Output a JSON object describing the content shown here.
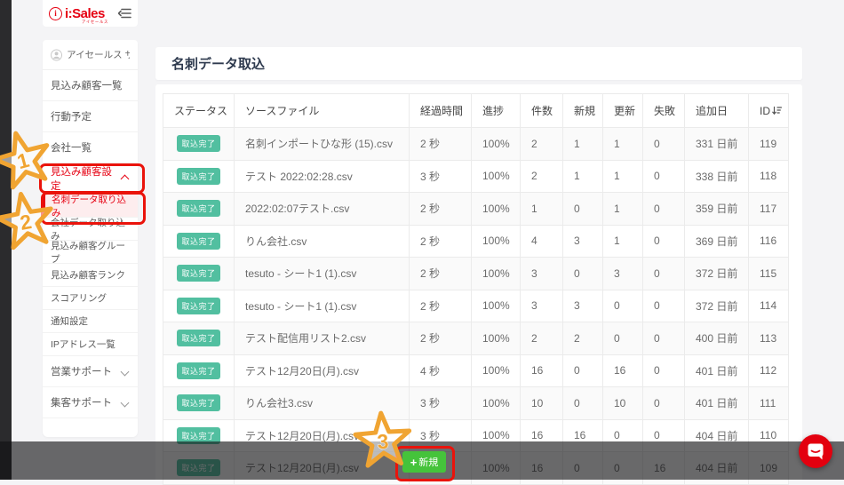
{
  "brand": {
    "logo_text": "i:Sales",
    "logo_mark": "i",
    "logo_subtext": "アイセールス"
  },
  "user": {
    "name": "アイセールス サ…"
  },
  "sidebar": {
    "items": [
      {
        "key": "leads-list",
        "label": "見込み顧客一覧",
        "type": "main"
      },
      {
        "key": "action-schedule",
        "label": "行動予定",
        "type": "main"
      },
      {
        "key": "company-list",
        "label": "会社一覧",
        "type": "main"
      },
      {
        "key": "lead-settings",
        "label": "見込み顧客設定",
        "type": "main",
        "accent": true,
        "chevron": "up"
      },
      {
        "key": "business-card-import",
        "label": "名刺データ取り込み",
        "type": "sub",
        "active": true
      },
      {
        "key": "company-data-import",
        "label": "会社データ取り込み",
        "type": "sub"
      },
      {
        "key": "lead-group",
        "label": "見込み顧客グループ",
        "type": "sub"
      },
      {
        "key": "lead-rank",
        "label": "見込み顧客ランク",
        "type": "sub"
      },
      {
        "key": "scoring",
        "label": "スコアリング",
        "type": "sub"
      },
      {
        "key": "notification-settings",
        "label": "通知設定",
        "type": "sub"
      },
      {
        "key": "ip-address-list",
        "label": "IPアドレス一覧",
        "type": "sub"
      },
      {
        "key": "sales-support",
        "label": "営業サポート",
        "type": "main",
        "chevron": "down"
      },
      {
        "key": "marketing-support",
        "label": "集客サポート",
        "type": "main",
        "chevron": "down"
      }
    ]
  },
  "page": {
    "title": "名刺データ取込"
  },
  "table": {
    "columns": [
      "ステータス",
      "ソースファイル",
      "経過時間",
      "進捗",
      "件数",
      "新規",
      "更新",
      "失敗",
      "追加日",
      "ID"
    ],
    "rows": [
      {
        "status": "取込完了",
        "file": "名刺インポートひな形 (15).csv",
        "time": "2 秒",
        "progress": "100%",
        "count": "2",
        "new": "1",
        "update": "1",
        "fail": "0",
        "added": "331 日前",
        "id": "119"
      },
      {
        "status": "取込完了",
        "file": "テスト 2022:02:28.csv",
        "time": "3 秒",
        "progress": "100%",
        "count": "2",
        "new": "1",
        "update": "1",
        "fail": "0",
        "added": "338 日前",
        "id": "118"
      },
      {
        "status": "取込完了",
        "file": "2022:02:07テスト.csv",
        "time": "2 秒",
        "progress": "100%",
        "count": "1",
        "new": "0",
        "update": "1",
        "fail": "0",
        "added": "359 日前",
        "id": "117"
      },
      {
        "status": "取込完了",
        "file": "りん会社.csv",
        "time": "2 秒",
        "progress": "100%",
        "count": "4",
        "new": "3",
        "update": "1",
        "fail": "0",
        "added": "369 日前",
        "id": "116"
      },
      {
        "status": "取込完了",
        "file": "tesuto - シート1 (1).csv",
        "time": "2 秒",
        "progress": "100%",
        "count": "3",
        "new": "0",
        "update": "3",
        "fail": "0",
        "added": "372 日前",
        "id": "115"
      },
      {
        "status": "取込完了",
        "file": "tesuto - シート1 (1).csv",
        "time": "2 秒",
        "progress": "100%",
        "count": "3",
        "new": "3",
        "update": "0",
        "fail": "0",
        "added": "372 日前",
        "id": "114"
      },
      {
        "status": "取込完了",
        "file": "テスト配信用リスト2.csv",
        "time": "2 秒",
        "progress": "100%",
        "count": "2",
        "new": "2",
        "update": "0",
        "fail": "0",
        "added": "400 日前",
        "id": "113"
      },
      {
        "status": "取込完了",
        "file": "テスト12月20日(月).csv",
        "time": "4 秒",
        "progress": "100%",
        "count": "16",
        "new": "0",
        "update": "16",
        "fail": "0",
        "added": "401 日前",
        "id": "112"
      },
      {
        "status": "取込完了",
        "file": "りん会社3.csv",
        "time": "3 秒",
        "progress": "100%",
        "count": "10",
        "new": "0",
        "update": "10",
        "fail": "0",
        "added": "401 日前",
        "id": "111"
      },
      {
        "status": "取込完了",
        "file": "テスト12月20日(月).csv",
        "time": "3 秒",
        "progress": "100%",
        "count": "16",
        "new": "16",
        "update": "0",
        "fail": "0",
        "added": "404 日前",
        "id": "110"
      },
      {
        "status": "取込完了",
        "file": "テスト12月20日(月).csv",
        "time": "",
        "progress": "100%",
        "count": "16",
        "new": "0",
        "update": "0",
        "fail": "16",
        "added": "404 日前",
        "id": "109"
      }
    ]
  },
  "actions": {
    "new_button_plus": "+",
    "new_button_label": "新規"
  },
  "annotations": {
    "steps": [
      "1",
      "2",
      "3"
    ]
  },
  "icons": {
    "logo-mark": "circled-i",
    "menu-fold": "hamburger-collapse",
    "avatar": "person-circle",
    "chevron-up": "∧",
    "chevron-down": "∨",
    "sort": "sort-descending",
    "plus": "+",
    "chat": "chat-bubble"
  },
  "colors": {
    "brand_red": "#e60012",
    "annotation_red": "#ea130b",
    "annotation_gold": "#f0a432",
    "badge_green": "#52bfa0",
    "button_green": "#45c33b",
    "chat_red": "#e3000f",
    "overlay": "rgba(16,16,18,0.62)"
  }
}
